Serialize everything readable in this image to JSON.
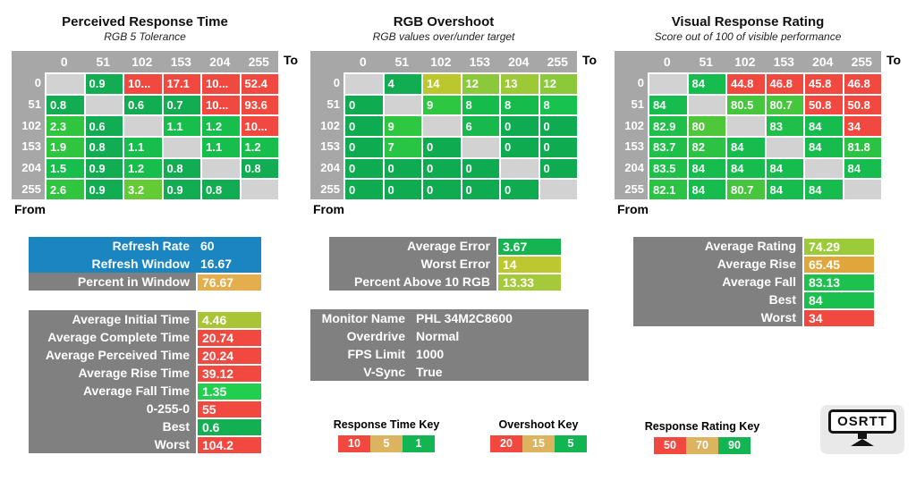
{
  "palette": {
    "D": "#D2D2D2",
    "R": "#F1483F",
    "g1": "#12AC52",
    "g2": "#17BE4B",
    "g3": "#2FC53F",
    "g4": "#63CB33",
    "g0": "#0FAB50",
    "g6": "#17B94D",
    "g7": "#28C444",
    "g8": "#15BC4C",
    "g8b": "#17C24E",
    "g9": "#2EC741",
    "y12": "#8CC93A",
    "y13": "#9CC935",
    "y14": "#BCC72E",
    "G84": "#17BC4E",
    "G83": "#1FBF4A",
    "G82": "#2CC244",
    "G80": "#45C63C",
    "G79": "#4FC73A"
  },
  "labels": {
    "to": "To",
    "from": "From"
  },
  "tables": [
    {
      "title": "Perceived Response Time",
      "subtitle": "RGB 5 Tolerance",
      "col_headers": [
        "0",
        "51",
        "102",
        "153",
        "204",
        "255"
      ],
      "row_headers": [
        "0",
        "51",
        "102",
        "153",
        "204",
        "255"
      ],
      "values": [
        [
          "",
          "0.9",
          "10...",
          "17.1",
          "10...",
          "52.4"
        ],
        [
          "0.8",
          "",
          "0.6",
          "0.7",
          "10...",
          "93.6"
        ],
        [
          "2.3",
          "0.6",
          "",
          "1.1",
          "1.2",
          "10..."
        ],
        [
          "1.9",
          "0.8",
          "1.1",
          "",
          "1.1",
          "1.2"
        ],
        [
          "1.5",
          "0.9",
          "1.2",
          "0.8",
          "",
          "0.8"
        ],
        [
          "2.6",
          "0.9",
          "3.2",
          "0.9",
          "0.8",
          ""
        ]
      ],
      "colors": [
        [
          "D",
          "g1",
          "R",
          "R",
          "R",
          "R"
        ],
        [
          "g1",
          "D",
          "g1",
          "g1",
          "R",
          "R"
        ],
        [
          "g3",
          "g1",
          "D",
          "g2",
          "g2",
          "R"
        ],
        [
          "g3",
          "g1",
          "g2",
          "D",
          "g2",
          "g2"
        ],
        [
          "g2",
          "g1",
          "g2",
          "g1",
          "D",
          "g1"
        ],
        [
          "g3",
          "g1",
          "g4",
          "g1",
          "g1",
          "D"
        ]
      ]
    },
    {
      "title": "RGB Overshoot",
      "subtitle": "RGB values over/under target",
      "col_headers": [
        "0",
        "51",
        "102",
        "153",
        "204",
        "255"
      ],
      "row_headers": [
        "0",
        "51",
        "102",
        "153",
        "204",
        "255"
      ],
      "values": [
        [
          "",
          "4",
          "14",
          "12",
          "13",
          "12"
        ],
        [
          "0",
          "",
          "9",
          "8",
          "8",
          "8"
        ],
        [
          "0",
          "9",
          "",
          "6",
          "0",
          "0"
        ],
        [
          "0",
          "7",
          "0",
          "",
          "0",
          "0"
        ],
        [
          "0",
          "0",
          "0",
          "0",
          "",
          "0"
        ],
        [
          "0",
          "0",
          "0",
          "0",
          "0",
          ""
        ]
      ],
      "colors": [
        [
          "D",
          "g1",
          "y14",
          "y12",
          "y13",
          "y12"
        ],
        [
          "g0",
          "D",
          "g9",
          "g8",
          "g8",
          "g8b"
        ],
        [
          "g0",
          "g9",
          "D",
          "g6",
          "g0",
          "g0"
        ],
        [
          "g0",
          "g7",
          "g0",
          "D",
          "g0",
          "g0"
        ],
        [
          "g0",
          "g0",
          "g0",
          "g0",
          "D",
          "g0"
        ],
        [
          "g0",
          "g0",
          "g0",
          "g0",
          "g0",
          "D"
        ]
      ]
    },
    {
      "title": "Visual Response Rating",
      "subtitle": "Score out of 100 of visible performance",
      "col_headers": [
        "0",
        "51",
        "102",
        "153",
        "204",
        "255"
      ],
      "row_headers": [
        "0",
        "51",
        "102",
        "153",
        "204",
        "255"
      ],
      "values": [
        [
          "",
          "84",
          "44.8",
          "46.8",
          "45.8",
          "46.8"
        ],
        [
          "84",
          "",
          "80.5",
          "80.7",
          "50.8",
          "50.8"
        ],
        [
          "82.9",
          "80",
          "",
          "83",
          "84",
          "34"
        ],
        [
          "83.7",
          "82",
          "84",
          "",
          "84",
          "81.8"
        ],
        [
          "83.5",
          "84",
          "84",
          "84",
          "",
          "84"
        ],
        [
          "82.1",
          "84",
          "80.7",
          "84",
          "84",
          ""
        ]
      ],
      "colors": [
        [
          "D",
          "G84",
          "R",
          "R",
          "R",
          "R"
        ],
        [
          "G84",
          "D",
          "G80",
          "G80",
          "R",
          "R"
        ],
        [
          "G83",
          "G79",
          "D",
          "G83",
          "G84",
          "R"
        ],
        [
          "G83",
          "G82",
          "G84",
          "D",
          "G84",
          "G82"
        ],
        [
          "G83",
          "G84",
          "G84",
          "G84",
          "D",
          "G84"
        ],
        [
          "G82",
          "G84",
          "G80",
          "G84",
          "G84",
          "D"
        ]
      ]
    }
  ],
  "panels": [
    {
      "id": "refresh",
      "rows": [
        {
          "label": "Refresh Rate",
          "value": "60",
          "lbg": "#1A85C0",
          "vbg": "#1A85C0"
        },
        {
          "label": "Refresh Window",
          "value": "16.67",
          "lbg": "#1A85C0",
          "vbg": "#1A85C0"
        },
        {
          "label": "Percent in Window",
          "value": "76.67",
          "lbg": "#808080",
          "vbg": "#E3AE4B"
        }
      ]
    },
    {
      "id": "times",
      "rows": [
        {
          "label": "Average Initial Time",
          "value": "4.46",
          "lbg": "#808080",
          "vbg": "#A9C437"
        },
        {
          "label": "Average Complete Time",
          "value": "20.74",
          "lbg": "#808080",
          "vbg": "#F1483F"
        },
        {
          "label": "Average Perceived Time",
          "value": "20.24",
          "lbg": "#808080",
          "vbg": "#F1483F"
        },
        {
          "label": "Average Rise Time",
          "value": "39.12",
          "lbg": "#808080",
          "vbg": "#F1483F"
        },
        {
          "label": "Average Fall Time",
          "value": "1.35",
          "lbg": "#808080",
          "vbg": "#21CE4E"
        },
        {
          "label": "0-255-0",
          "value": "55",
          "lbg": "#808080",
          "vbg": "#F1483F"
        },
        {
          "label": "Best",
          "value": "0.6",
          "lbg": "#808080",
          "vbg": "#12AF53"
        },
        {
          "label": "Worst",
          "value": "104.2",
          "lbg": "#808080",
          "vbg": "#F1483F"
        }
      ]
    },
    {
      "id": "error",
      "rows": [
        {
          "label": "Average Error",
          "value": "3.67",
          "lbg": "#808080",
          "vbg": "#14B550"
        },
        {
          "label": "Worst Error",
          "value": "14",
          "lbg": "#808080",
          "vbg": "#BDC72F"
        },
        {
          "label": "Percent Above 10 RGB",
          "value": "13.33",
          "lbg": "#808080",
          "vbg": "#A4C93A"
        }
      ]
    },
    {
      "id": "monitor",
      "rows": [
        {
          "label": "Monitor Name",
          "value": "PHL 34M2C8600",
          "lbg": "#808080",
          "vbg": "#808080"
        },
        {
          "label": "Overdrive",
          "value": "Normal",
          "lbg": "#808080",
          "vbg": "#808080"
        },
        {
          "label": "FPS Limit",
          "value": "1000",
          "lbg": "#808080",
          "vbg": "#808080"
        },
        {
          "label": "V-Sync",
          "value": "True",
          "lbg": "#808080",
          "vbg": "#808080"
        }
      ]
    },
    {
      "id": "rating",
      "rows": [
        {
          "label": "Average Rating",
          "value": "74.29",
          "lbg": "#808080",
          "vbg": "#9CCB3A"
        },
        {
          "label": "Average Rise",
          "value": "65.45",
          "lbg": "#808080",
          "vbg": "#E0A63C"
        },
        {
          "label": "Average Fall",
          "value": "83.13",
          "lbg": "#808080",
          "vbg": "#1DC14D"
        },
        {
          "label": "Best",
          "value": "84",
          "lbg": "#808080",
          "vbg": "#1AC04E"
        },
        {
          "label": "Worst",
          "value": "34",
          "lbg": "#808080",
          "vbg": "#F1483F"
        }
      ]
    }
  ],
  "keys": [
    {
      "title": "Response Time Key",
      "cells": [
        {
          "v": "10",
          "c": "#F1483F"
        },
        {
          "v": "5",
          "c": "#DCB45F"
        },
        {
          "v": "1",
          "c": "#12B551"
        }
      ]
    },
    {
      "title": "Overshoot Key",
      "cells": [
        {
          "v": "20",
          "c": "#F1483F"
        },
        {
          "v": "15",
          "c": "#DCB45F"
        },
        {
          "v": "5",
          "c": "#12B551"
        }
      ]
    },
    {
      "title": "Response Rating Key",
      "cells": [
        {
          "v": "50",
          "c": "#F1483F"
        },
        {
          "v": "70",
          "c": "#DCB45F"
        },
        {
          "v": "90",
          "c": "#12B551"
        }
      ]
    }
  ],
  "logo": {
    "text": "OSRTT"
  },
  "chart_data": [
    {
      "type": "heatmap",
      "title": "Perceived Response Time",
      "subtitle": "RGB 5 Tolerance",
      "xlabel": "To",
      "ylabel": "From",
      "x": [
        0,
        51,
        102,
        153,
        204,
        255
      ],
      "y": [
        0,
        51,
        102,
        153,
        204,
        255
      ],
      "values": [
        [
          null,
          0.9,
          "10...",
          17.1,
          "10...",
          52.4
        ],
        [
          0.8,
          null,
          0.6,
          0.7,
          "10...",
          93.6
        ],
        [
          2.3,
          0.6,
          null,
          1.1,
          1.2,
          "10..."
        ],
        [
          1.9,
          0.8,
          1.1,
          null,
          1.1,
          1.2
        ],
        [
          1.5,
          0.9,
          1.2,
          0.8,
          null,
          0.8
        ],
        [
          2.6,
          0.9,
          3.2,
          0.9,
          0.8,
          null
        ]
      ],
      "color_key_thresholds": {
        "red": 10,
        "yellow": 5,
        "green": 1
      }
    },
    {
      "type": "heatmap",
      "title": "RGB Overshoot",
      "subtitle": "RGB values over/under target",
      "xlabel": "To",
      "ylabel": "From",
      "x": [
        0,
        51,
        102,
        153,
        204,
        255
      ],
      "y": [
        0,
        51,
        102,
        153,
        204,
        255
      ],
      "values": [
        [
          null,
          4,
          14,
          12,
          13,
          12
        ],
        [
          0,
          null,
          9,
          8,
          8,
          8
        ],
        [
          0,
          9,
          null,
          6,
          0,
          0
        ],
        [
          0,
          7,
          0,
          null,
          0,
          0
        ],
        [
          0,
          0,
          0,
          0,
          null,
          0
        ],
        [
          0,
          0,
          0,
          0,
          0,
          null
        ]
      ],
      "color_key_thresholds": {
        "red": 20,
        "yellow": 15,
        "green": 5
      }
    },
    {
      "type": "heatmap",
      "title": "Visual Response Rating",
      "subtitle": "Score out of 100 of visible performance",
      "xlabel": "To",
      "ylabel": "From",
      "x": [
        0,
        51,
        102,
        153,
        204,
        255
      ],
      "y": [
        0,
        51,
        102,
        153,
        204,
        255
      ],
      "values": [
        [
          null,
          84,
          44.8,
          46.8,
          45.8,
          46.8
        ],
        [
          84,
          null,
          80.5,
          80.7,
          50.8,
          50.8
        ],
        [
          82.9,
          80,
          null,
          83,
          84,
          34
        ],
        [
          83.7,
          82,
          84,
          null,
          84,
          81.8
        ],
        [
          83.5,
          84,
          84,
          84,
          null,
          84
        ],
        [
          82.1,
          84,
          80.7,
          84,
          84,
          null
        ]
      ],
      "color_key_thresholds": {
        "red": 50,
        "yellow": 70,
        "green": 90
      }
    }
  ]
}
